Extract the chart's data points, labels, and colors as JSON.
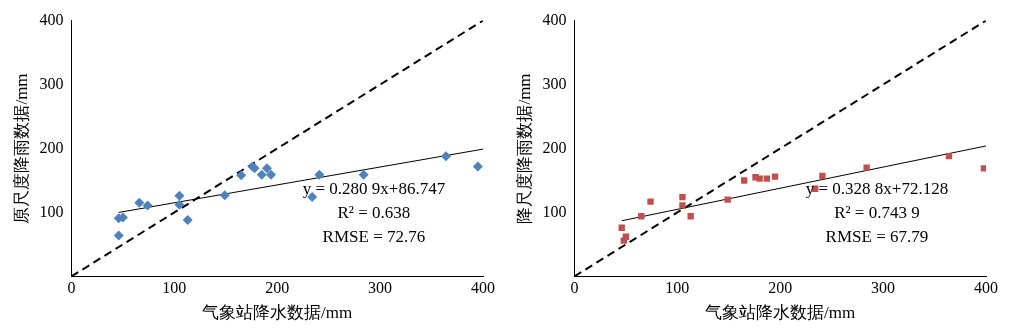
{
  "chart_data": [
    {
      "type": "scatter",
      "xlabel": "气象站降水数据/mm",
      "ylabel": "原尺度降雨数据/mm",
      "xlim": [
        0,
        400
      ],
      "ylim": [
        0,
        400
      ],
      "xticks": [
        0,
        100,
        200,
        300,
        400
      ],
      "yticks": [
        100,
        200,
        300,
        400
      ],
      "grid": false,
      "legend": false,
      "x": [
        46,
        46,
        50,
        66,
        74,
        105,
        105,
        113,
        149,
        165,
        176,
        178,
        185,
        190,
        194,
        234,
        241,
        284,
        364,
        395
      ],
      "series": [
        {
          "type": "scatter",
          "color": "#4f81bd",
          "marker": "diamond",
          "values": [
            64,
            91,
            92,
            115,
            111,
            126,
            112,
            88,
            127,
            158,
            172,
            169,
            159,
            169,
            159,
            124,
            159,
            159,
            188,
            172
          ]
        },
        {
          "type": "line",
          "color": "#000000",
          "line_style": "solid",
          "marker": "none",
          "x": [
            46,
            400
          ],
          "values": [
            100,
            199
          ]
        },
        {
          "type": "line",
          "color": "#000000",
          "line_style": "dashed",
          "marker": "none",
          "x": [
            0,
            400
          ],
          "values": [
            0,
            400
          ]
        }
      ],
      "annotations": [
        "y = 0.280 9x+86.747",
        "R² = 0.638",
        "RMSE = 72.76"
      ]
    },
    {
      "type": "scatter",
      "xlabel": "气象站降水数据/mm",
      "ylabel": "降尺度降雨数据/mm",
      "xlim": [
        0,
        400
      ],
      "ylim": [
        0,
        400
      ],
      "xticks": [
        0,
        100,
        200,
        300,
        400
      ],
      "yticks": [
        100,
        200,
        300,
        400
      ],
      "grid": false,
      "legend": false,
      "x": [
        46,
        50,
        48,
        65,
        74,
        105,
        105,
        113,
        149,
        165,
        176,
        180,
        187,
        195,
        234,
        241,
        284,
        364,
        398
      ],
      "series": [
        {
          "type": "scatter",
          "color": "#c0504d",
          "marker": "square",
          "values": [
            76,
            62,
            56,
            94,
            117,
            124,
            111,
            94,
            120,
            150,
            155,
            153,
            153,
            156,
            137,
            157,
            170,
            188,
            169
          ]
        },
        {
          "type": "line",
          "color": "#000000",
          "line_style": "solid",
          "marker": "none",
          "x": [
            46,
            400
          ],
          "values": [
            87,
            204
          ]
        },
        {
          "type": "line",
          "color": "#000000",
          "line_style": "dashed",
          "marker": "none",
          "x": [
            0,
            400
          ],
          "values": [
            0,
            400
          ]
        }
      ],
      "annotations": [
        "y = 0.328 8x+72.128",
        "R² = 0.743 9",
        "RMSE = 67.79"
      ]
    }
  ]
}
